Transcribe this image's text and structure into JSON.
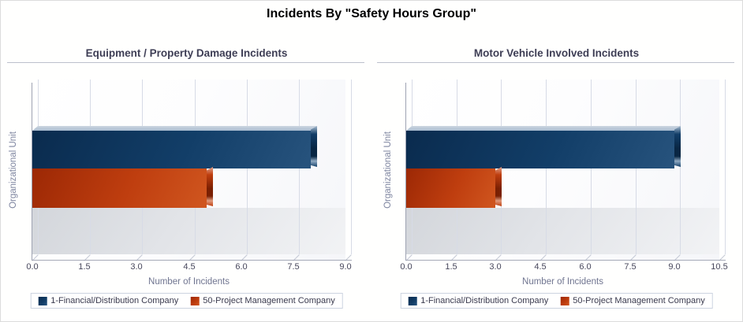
{
  "page": {
    "title": "Incidents By \"Safety Hours Group\""
  },
  "chart_data": [
    {
      "type": "bar",
      "orientation": "horizontal",
      "title": "Equipment / Property Damage Incidents",
      "xlabel": "Number of Incidents",
      "ylabel": "Organizational Unit",
      "xlim": [
        0,
        9
      ],
      "xticks": [
        0.0,
        1.5,
        3.0,
        4.5,
        6.0,
        7.5,
        9.0
      ],
      "grid": true,
      "legend_position": "bottom",
      "series": [
        {
          "name": "1-Financial/Distribution Company",
          "value": 8,
          "colors": {
            "dark": "#0a2b4e",
            "mid": "#123e68",
            "light": "#27537d",
            "top": "#a9bcd0",
            "cap": "#092643",
            "glint": "#8fa9c2"
          }
        },
        {
          "name": "50-Project Management Company",
          "value": 5,
          "colors": {
            "dark": "#9c2805",
            "mid": "#bf3e0f",
            "light": "#d0561f",
            "top": "#e2a58f",
            "cap": "#7a2003",
            "glint": "#e09a7c"
          }
        }
      ]
    },
    {
      "type": "bar",
      "orientation": "horizontal",
      "title": "Motor Vehicle Involved Incidents",
      "xlabel": "Number of Incidents",
      "ylabel": "Organizational Unit",
      "xlim": [
        0,
        10.5
      ],
      "xticks": [
        0.0,
        1.5,
        3.0,
        4.5,
        6.0,
        7.5,
        9.0,
        10.5
      ],
      "grid": true,
      "legend_position": "bottom",
      "series": [
        {
          "name": "1-Financial/Distribution Company",
          "value": 9,
          "colors": {
            "dark": "#0a2b4e",
            "mid": "#123e68",
            "light": "#27537d",
            "top": "#a9bcd0",
            "cap": "#092643",
            "glint": "#8fa9c2"
          }
        },
        {
          "name": "50-Project Management Company",
          "value": 3,
          "colors": {
            "dark": "#9c2805",
            "mid": "#bf3e0f",
            "light": "#d0561f",
            "top": "#e2a58f",
            "cap": "#7a2003",
            "glint": "#e09a7c"
          }
        }
      ]
    }
  ]
}
